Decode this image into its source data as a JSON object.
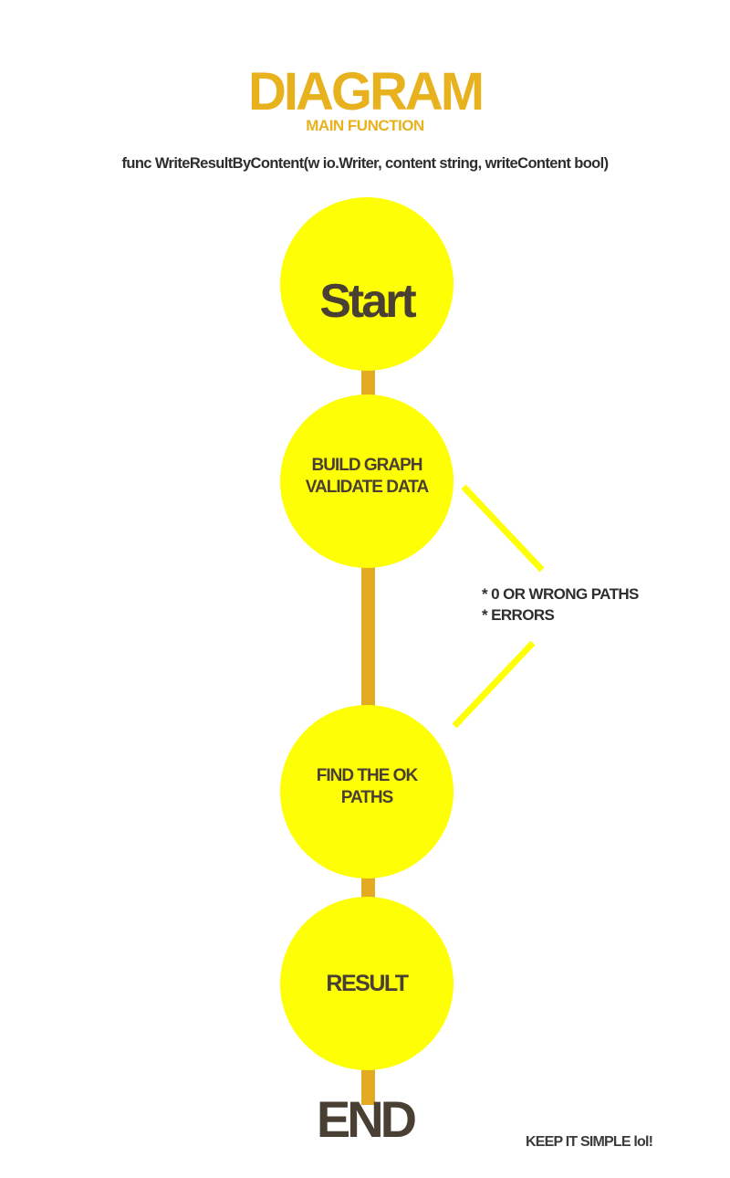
{
  "header": {
    "title": "DIAGRAM",
    "subtitle": "MAIN FUNCTION",
    "signature": "func WriteResultByContent(w io.Writer,  content string, writeContent bool)"
  },
  "flow": {
    "start": "Start",
    "build_line1": "BUILD GRAPH",
    "build_line2": "VALIDATE DATA",
    "find_line1": "FIND THE OK",
    "find_line2": "PATHS",
    "result": "RESULT",
    "end": "END"
  },
  "branch": {
    "items": [
      "* 0 OR WRONG PATHS",
      "* ERRORS"
    ]
  },
  "footer": {
    "text": "KEEP IT SIMPLE lol!"
  },
  "colors": {
    "accent_gold": "#e8b21f",
    "node_yellow": "#fefe05",
    "spine": "#e3ab22",
    "dark_text": "#4a3f33"
  }
}
